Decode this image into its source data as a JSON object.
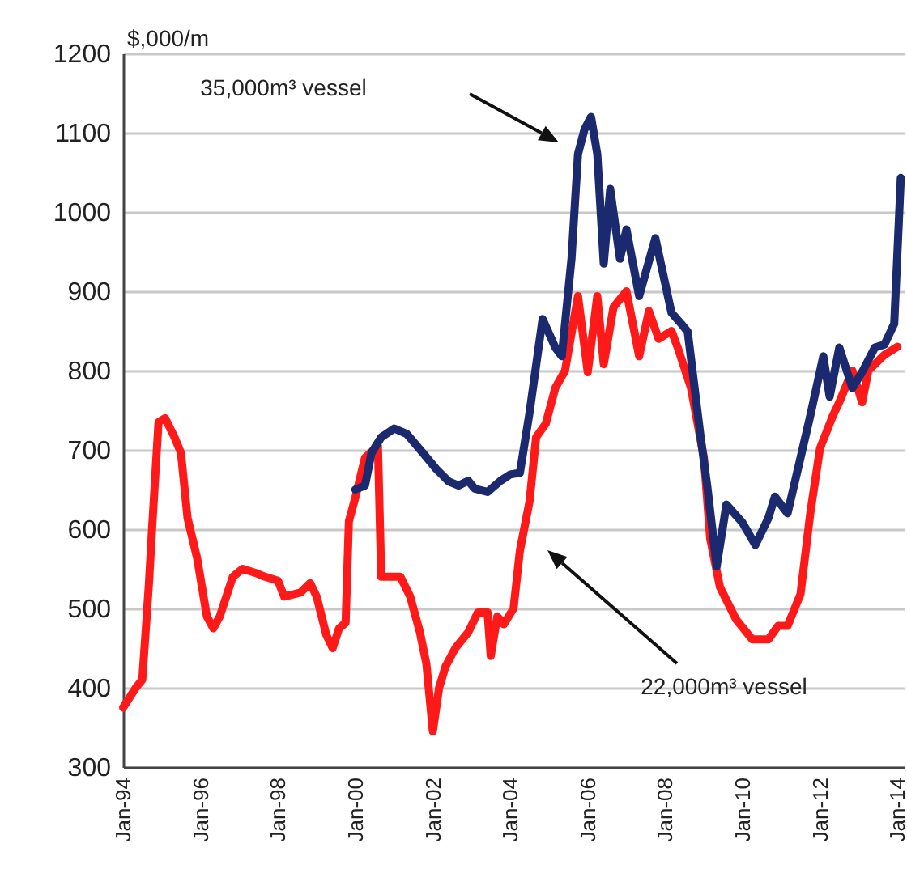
{
  "chart_data": {
    "type": "line",
    "ylabel": "$,000/m",
    "xlim": [
      "1994-01",
      "2014-03"
    ],
    "xticks": [
      {
        "value": "1994-01",
        "label": "Jan-94"
      },
      {
        "value": "1996-01",
        "label": "Jan-96"
      },
      {
        "value": "1998-01",
        "label": "Jan-98"
      },
      {
        "value": "2000-01",
        "label": "Jan-00"
      },
      {
        "value": "2002-01",
        "label": "Jan-02"
      },
      {
        "value": "2004-01",
        "label": "Jan-04"
      },
      {
        "value": "2006-01",
        "label": "Jan-06"
      },
      {
        "value": "2008-01",
        "label": "Jan-08"
      },
      {
        "value": "2010-01",
        "label": "Jan-10"
      },
      {
        "value": "2012-01",
        "label": "Jan-12"
      },
      {
        "value": "2014-01",
        "label": "Jan-14"
      }
    ],
    "ylim": [
      300,
      1200
    ],
    "yticks": [
      300,
      400,
      500,
      600,
      700,
      800,
      900,
      1000,
      1100,
      1200
    ],
    "grid": "y",
    "line_style": "solid",
    "annotations": [
      "35,000m³ vessel",
      "22,000m³ vessel"
    ],
    "series": [
      {
        "color": "#ff1a1a",
        "x": [
          "1994-01",
          "1994-05",
          "1994-07",
          "1994-09",
          "1994-10",
          "1994-12",
          "1995-02",
          "1995-05",
          "1995-07",
          "1995-09",
          "1995-12",
          "1996-03",
          "1996-05",
          "1996-07",
          "1996-11",
          "1997-02",
          "1997-06",
          "1997-09",
          "1998-01",
          "1998-03",
          "1998-05",
          "1998-08",
          "1998-11",
          "1999-01",
          "1999-04",
          "1999-06",
          "1999-08",
          "1999-10",
          "1999-11",
          "2000-01",
          "2000-04",
          "2000-08",
          "2000-09",
          "2001-03",
          "2001-06",
          "2001-09",
          "2001-11",
          "2002-01",
          "2002-03",
          "2002-05",
          "2002-08",
          "2002-12",
          "2003-03",
          "2003-06",
          "2003-07",
          "2003-09",
          "2003-11",
          "2004-02",
          "2004-04",
          "2004-07",
          "2004-09",
          "2004-12",
          "2005-03",
          "2005-06",
          "2005-10",
          "2006-01",
          "2006-04",
          "2006-06",
          "2006-09",
          "2007-01",
          "2007-03",
          "2007-05",
          "2007-08",
          "2007-11",
          "2008-03",
          "2008-05",
          "2008-09",
          "2009-01",
          "2009-03",
          "2009-06",
          "2009-11",
          "2010-04",
          "2010-09",
          "2010-12",
          "2011-03",
          "2011-07",
          "2011-10",
          "2012-01",
          "2012-05",
          "2012-07",
          "2012-11",
          "2013-02",
          "2013-04",
          "2013-09",
          "2014-01"
        ],
        "values": [
          375,
          400,
          410,
          530,
          600,
          735,
          740,
          716,
          696,
          614,
          563,
          490,
          475,
          490,
          540,
          550,
          545,
          540,
          535,
          515,
          517,
          520,
          532,
          515,
          467,
          450,
          475,
          482,
          610,
          640,
          690,
          705,
          540,
          540,
          515,
          470,
          430,
          345,
          400,
          427,
          450,
          470,
          495,
          495,
          440,
          490,
          480,
          500,
          573,
          635,
          716,
          733,
          778,
          800,
          894,
          798,
          894,
          808,
          880,
          900,
          860,
          818,
          875,
          840,
          850,
          828,
          778,
          690,
          588,
          527,
          486,
          461,
          461,
          478,
          478,
          518,
          620,
          702,
          743,
          760,
          800,
          760,
          800,
          820,
          830
        ]
      },
      {
        "color": "#1b2a6e",
        "x": [
          "2000-01",
          "2000-04",
          "2000-06",
          "2000-09",
          "2001-01",
          "2001-05",
          "2001-10",
          "2002-02",
          "2002-06",
          "2002-09",
          "2002-12",
          "2003-02",
          "2003-06",
          "2003-10",
          "2004-01",
          "2004-04",
          "2004-07",
          "2004-11",
          "2005-03",
          "2005-05",
          "2005-08",
          "2005-10",
          "2005-12",
          "2006-02",
          "2006-04",
          "2006-06",
          "2006-08",
          "2006-11",
          "2007-01",
          "2007-05",
          "2007-10",
          "2008-03",
          "2008-06",
          "2008-08",
          "2008-12",
          "2009-02",
          "2009-05",
          "2009-08",
          "2010-01",
          "2010-05",
          "2010-09",
          "2010-11",
          "2011-03",
          "2011-07",
          "2011-10",
          "2012-02",
          "2012-04",
          "2012-07",
          "2012-11",
          "2013-02",
          "2013-06",
          "2013-09",
          "2013-12",
          "2014-02"
        ],
        "values": [
          650,
          655,
          696,
          716,
          727,
          720,
          696,
          676,
          660,
          655,
          661,
          651,
          647,
          661,
          669,
          671,
          747,
          865,
          829,
          818,
          941,
          1073,
          1104,
          1120,
          1073,
          935,
          1029,
          941,
          978,
          894,
          967,
          873,
          859,
          849,
          716,
          655,
          553,
          631,
          608,
          580,
          614,
          641,
          620,
          690,
          743,
          818,
          767,
          829,
          778,
          798,
          829,
          833,
          859,
          1043
        ]
      }
    ]
  }
}
